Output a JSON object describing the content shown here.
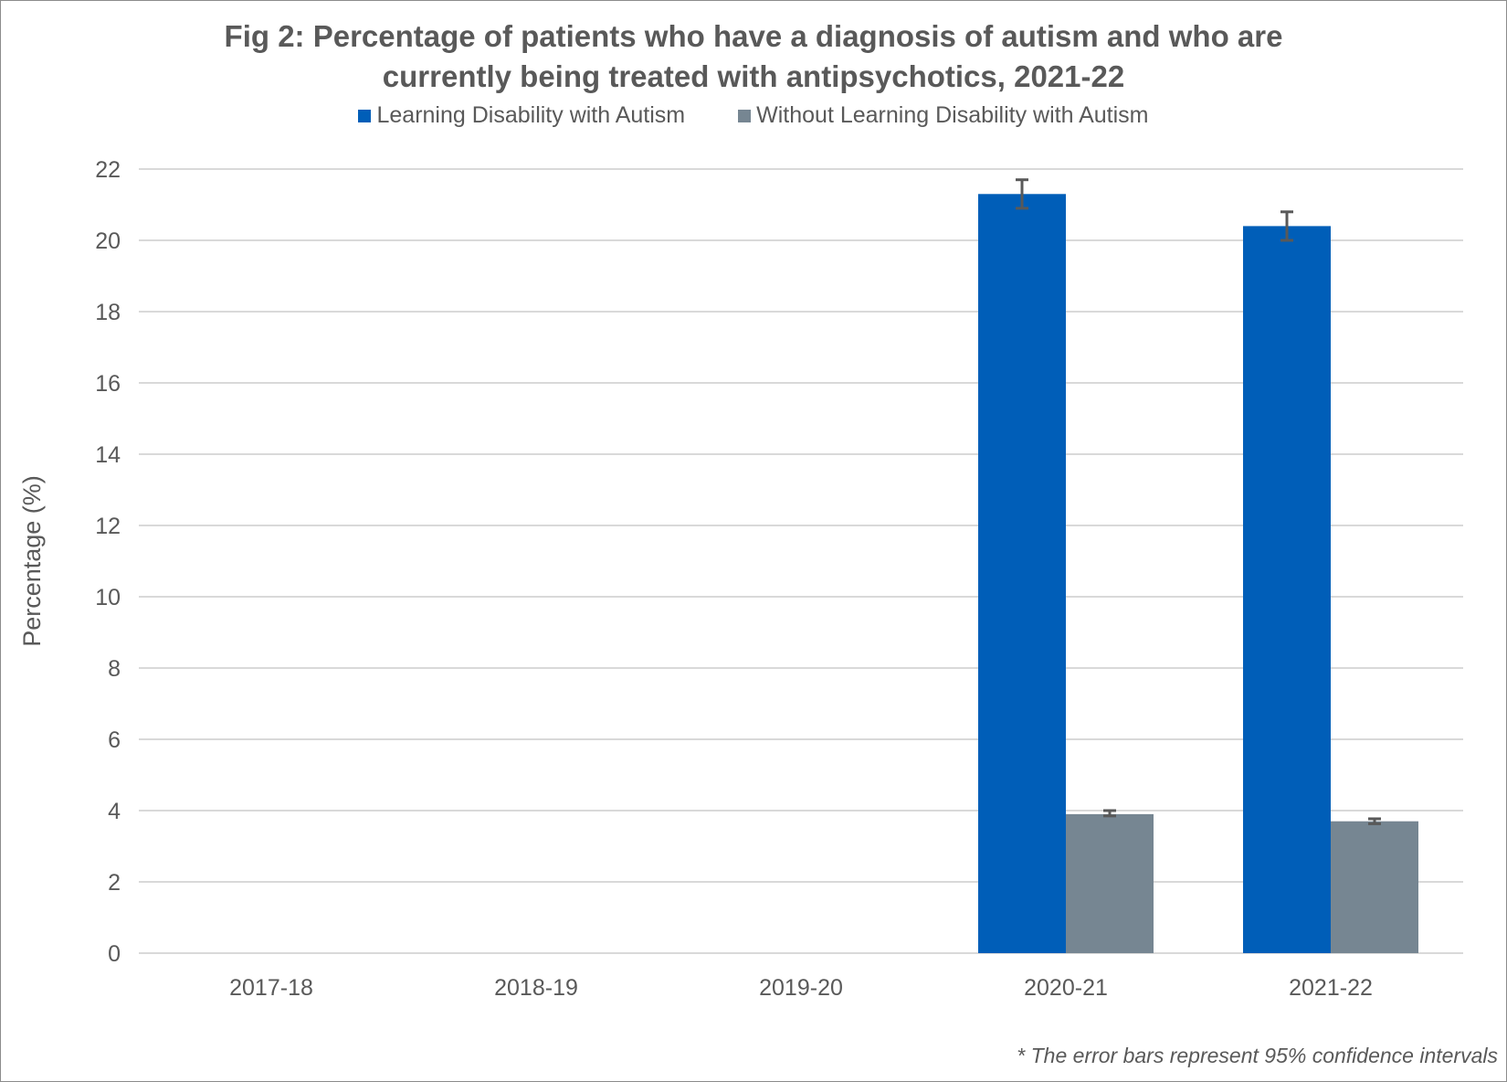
{
  "chart_data": {
    "type": "bar",
    "title_lines": [
      "Fig 2: Percentage of patients who have a diagnosis of autism and who are",
      "currently being treated with antipsychotics, 2021-22"
    ],
    "xlabel": "",
    "ylabel": "Percentage (%)",
    "ylim": [
      0,
      22
    ],
    "ytick_step": 2,
    "grid": true,
    "legend_position": "top",
    "categories": [
      "2017-18",
      "2018-19",
      "2019-20",
      "2020-21",
      "2021-22"
    ],
    "series": [
      {
        "name": "Learning Disability with Autism",
        "color": "#005EB8",
        "values": [
          null,
          null,
          null,
          21.3,
          20.4
        ],
        "ci_low": [
          null,
          null,
          null,
          20.9,
          20.0
        ],
        "ci_high": [
          null,
          null,
          null,
          21.7,
          20.8
        ]
      },
      {
        "name": "Without Learning Disability with Autism",
        "color": "#768692",
        "values": [
          null,
          null,
          null,
          3.9,
          3.7
        ],
        "ci_low": [
          null,
          null,
          null,
          3.85,
          3.63
        ],
        "ci_high": [
          null,
          null,
          null,
          4.0,
          3.77
        ]
      }
    ],
    "footnote": "* The error bars represent 95% confidence intervals"
  }
}
